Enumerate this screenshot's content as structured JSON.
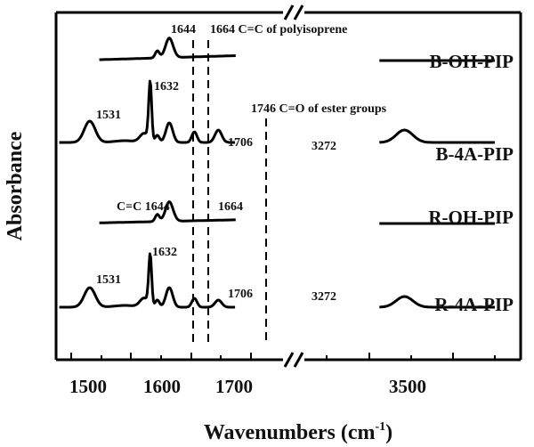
{
  "chart_data": {
    "type": "line",
    "xlabel": "Wavenumbers (cm",
    "xlabel_sup": "-1",
    "xlabel_tail": ")",
    "ylabel": "Absorbance",
    "x_ticks": [
      "1500",
      "1600",
      "1700",
      "3500"
    ],
    "axis_break": true,
    "series": [
      {
        "name": "B-OH-PIP",
        "peaks": [
          {
            "x": 1644,
            "label": "1644"
          },
          {
            "x": 1664,
            "label": "1664 C=C of polyisoprene"
          }
        ]
      },
      {
        "name": "B-4A-PIP",
        "peaks": [
          {
            "x": 1531,
            "label": "1531"
          },
          {
            "x": 1632,
            "label": "1632"
          },
          {
            "x": 1706,
            "label": "1706"
          },
          {
            "x": 1746,
            "label": "1746 C=O of ester groups"
          },
          {
            "x": 3272,
            "label": "3272"
          }
        ]
      },
      {
        "name": "R-OH-PIP",
        "peaks": [
          {
            "x": 1644,
            "label": "C=C 1644"
          },
          {
            "x": 1664,
            "label": "1664"
          }
        ]
      },
      {
        "name": "R-4A-PIP",
        "peaks": [
          {
            "x": 1531,
            "label": "1531"
          },
          {
            "x": 1632,
            "label": "1632"
          },
          {
            "x": 1706,
            "label": "1706"
          },
          {
            "x": 3272,
            "label": "3272"
          }
        ]
      }
    ],
    "reference_lines_x": [
      1644,
      1664,
      1746
    ]
  }
}
